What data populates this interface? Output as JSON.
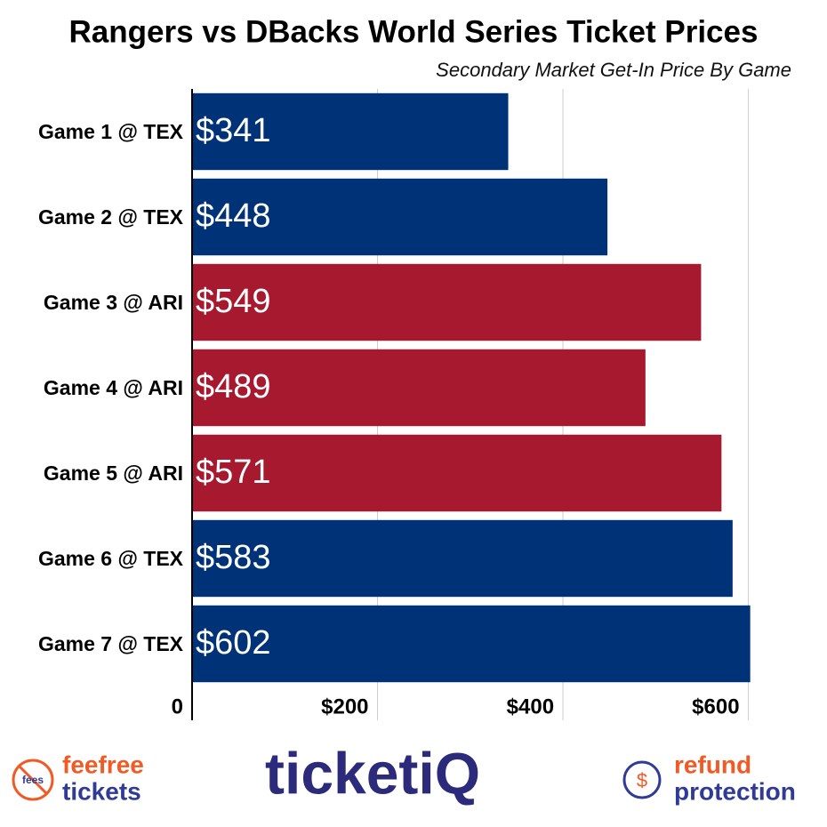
{
  "chart_data": {
    "type": "hbar",
    "title": "Rangers vs DBacks World Series Ticket Prices",
    "subtitle": "Secondary Market Get-In Price By Game",
    "categories": [
      "Game 1 @ TEX",
      "Game 2 @ TEX",
      "Game 3 @ ARI",
      "Game 4 @ ARI",
      "Game 5 @ ARI",
      "Game 6 @ TEX",
      "Game 7 @ TEX"
    ],
    "values": [
      341,
      448,
      549,
      489,
      571,
      583,
      602
    ],
    "value_labels": [
      "$341",
      "$448",
      "$549",
      "$489",
      "$571",
      "$583",
      "$602"
    ],
    "colors": [
      "#003278",
      "#003278",
      "#a6192e",
      "#a6192e",
      "#a6192e",
      "#003278",
      "#003278"
    ],
    "xlim": [
      0,
      610
    ],
    "xticks": [
      0,
      {
        "value": 200,
        "label": "$200"
      },
      {
        "value": 400,
        "label": "$400"
      },
      {
        "value": 600,
        "label": "$600"
      }
    ],
    "grid": true
  },
  "footer": {
    "fees": "fees",
    "feefree": "feefree",
    "tickets": "tickets",
    "brand": "ticketiQ",
    "refund": "refund",
    "protection": "protection"
  }
}
